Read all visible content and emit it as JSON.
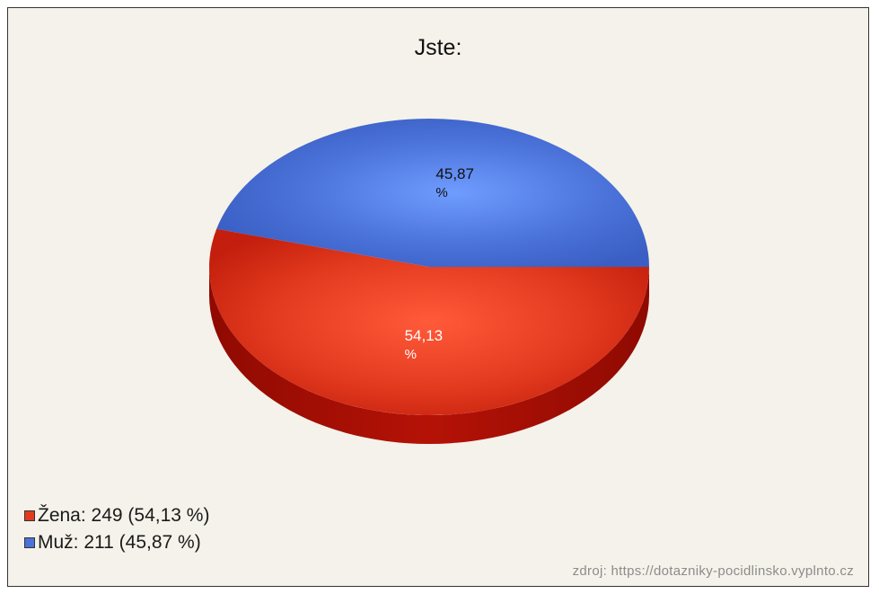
{
  "chart_data": {
    "type": "pie",
    "title": "Jste:",
    "slices": [
      {
        "label": "Žena",
        "count": 249,
        "percent": 54.13,
        "percent_label": "54,13",
        "color": "#e23a1e",
        "legend_text": "Žena: 249 (54,13 %)"
      },
      {
        "label": "Muž",
        "count": 211,
        "percent": 45.87,
        "percent_label": "45,87",
        "color": "#4a72d8",
        "legend_text": "Muž: 211 (45,87 %)"
      }
    ],
    "legend_placement": "bottom-left",
    "percent_unit": "%"
  },
  "source_text": "zdroj: https://dotazniky-pocidlinsko.vyplnto.cz"
}
